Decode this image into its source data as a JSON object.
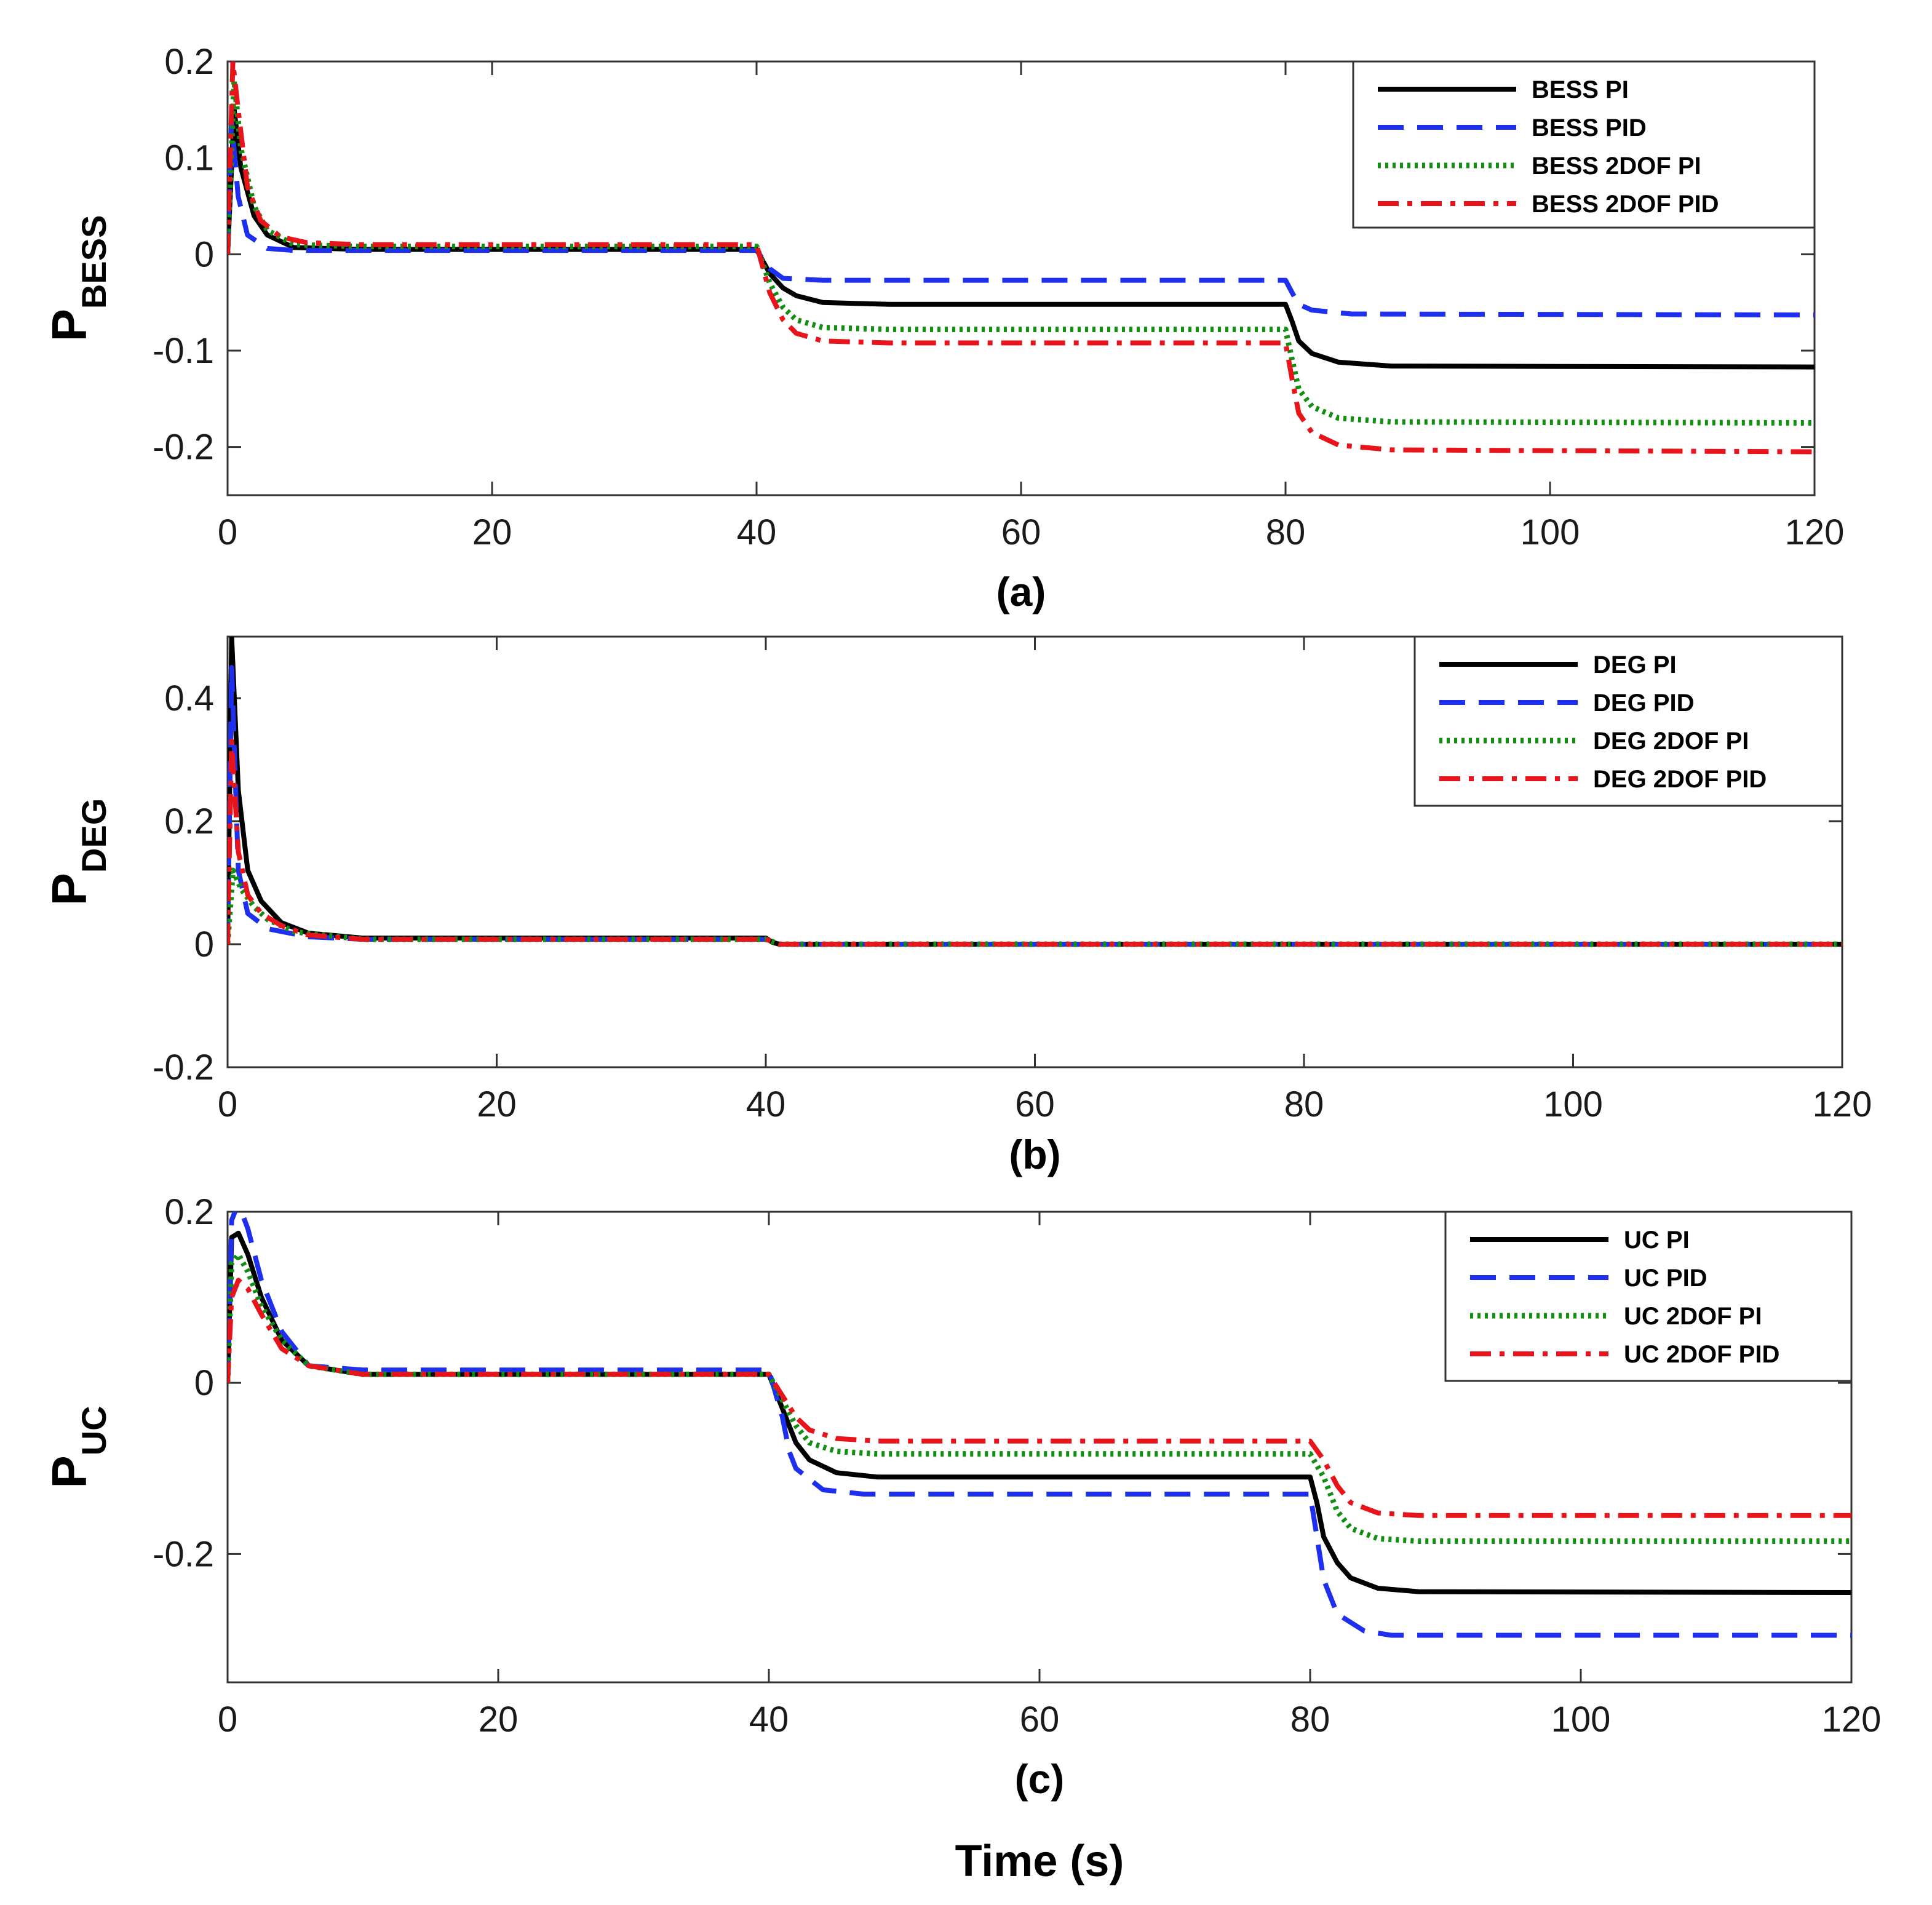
{
  "x_title": "Time (s)",
  "chart_data": [
    {
      "type": "line",
      "panel_label": "(a)",
      "ylabel_main": "P",
      "ylabel_sub": "BESS",
      "xlim": [
        0,
        120
      ],
      "ylim": [
        -0.25,
        0.2
      ],
      "xticks": [
        "0",
        "20",
        "40",
        "60",
        "80",
        "100",
        "120"
      ],
      "yticks": [
        "0.2",
        "0.1",
        "0",
        "-0.1",
        "-0.2"
      ],
      "ytick_values": [
        0.2,
        0.1,
        0,
        -0.1,
        -0.2
      ],
      "legend_position": "top-right",
      "series": [
        {
          "name": "BESS PI",
          "color": "#000000",
          "style": "solid",
          "x": [
            0,
            0.5,
            1,
            2,
            3,
            5,
            10,
            40,
            41,
            42,
            43,
            45,
            50,
            80,
            80.5,
            81,
            82,
            84,
            88,
            120
          ],
          "y": [
            0,
            0.15,
            0.09,
            0.04,
            0.02,
            0.007,
            0.005,
            0.005,
            -0.02,
            -0.035,
            -0.043,
            -0.05,
            -0.052,
            -0.052,
            -0.07,
            -0.09,
            -0.103,
            -0.112,
            -0.116,
            -0.117
          ]
        },
        {
          "name": "BESS PID",
          "color": "#1f2ff0",
          "style": "dashed",
          "x": [
            0,
            0.3,
            0.8,
            1.5,
            3,
            5,
            10,
            40,
            41,
            42,
            45,
            80,
            80.5,
            81,
            82,
            85,
            120
          ],
          "y": [
            0,
            0.14,
            0.06,
            0.02,
            0.006,
            0.004,
            0.004,
            0.004,
            -0.015,
            -0.025,
            -0.027,
            -0.027,
            -0.04,
            -0.052,
            -0.058,
            -0.062,
            -0.063
          ]
        },
        {
          "name": "BESS 2DOF PI",
          "color": "#118f11",
          "style": "dotted",
          "x": [
            0,
            0.5,
            1,
            2,
            3,
            5,
            10,
            40,
            41,
            42,
            43,
            45,
            50,
            80,
            80.5,
            81,
            82,
            84,
            88,
            120
          ],
          "y": [
            0,
            0.18,
            0.11,
            0.05,
            0.025,
            0.01,
            0.008,
            0.008,
            -0.03,
            -0.055,
            -0.068,
            -0.076,
            -0.078,
            -0.078,
            -0.11,
            -0.14,
            -0.158,
            -0.17,
            -0.174,
            -0.175
          ]
        },
        {
          "name": "BESS 2DOF PID",
          "color": "#e8141b",
          "style": "dashdot",
          "x": [
            0,
            0.4,
            0.8,
            1.5,
            2.5,
            4,
            6,
            10,
            40,
            41,
            42,
            43,
            45,
            50,
            80,
            80.5,
            81,
            82,
            84,
            88,
            120
          ],
          "y": [
            0,
            0.2,
            0.15,
            0.07,
            0.035,
            0.018,
            0.012,
            0.01,
            0.01,
            -0.04,
            -0.068,
            -0.082,
            -0.09,
            -0.092,
            -0.092,
            -0.13,
            -0.165,
            -0.185,
            -0.198,
            -0.203,
            -0.205
          ]
        }
      ]
    },
    {
      "type": "line",
      "panel_label": "(b)",
      "ylabel_main": "P",
      "ylabel_sub": "DEG",
      "xlim": [
        0,
        120
      ],
      "ylim": [
        -0.2,
        0.5
      ],
      "xticks": [
        "0",
        "20",
        "40",
        "60",
        "80",
        "100",
        "120"
      ],
      "yticks": [
        "0.4",
        "0.2",
        "0",
        "-0.2"
      ],
      "ytick_values": [
        0.4,
        0.2,
        0,
        -0.2
      ],
      "legend_position": "top-right",
      "series": [
        {
          "name": "DEG PI",
          "color": "#000000",
          "style": "solid",
          "x": [
            0,
            0.3,
            0.8,
            1.5,
            2.5,
            4,
            6,
            10,
            40,
            40.5,
            41,
            120
          ],
          "y": [
            0,
            0.5,
            0.25,
            0.12,
            0.07,
            0.035,
            0.018,
            0.01,
            0.01,
            0.003,
            0,
            0
          ]
        },
        {
          "name": "DEG PID",
          "color": "#1f2ff0",
          "style": "dashed",
          "x": [
            0,
            0.3,
            0.8,
            1.5,
            3,
            6,
            10,
            40,
            41,
            120
          ],
          "y": [
            0,
            0.45,
            0.12,
            0.05,
            0.025,
            0.012,
            0.008,
            0.008,
            0,
            0
          ]
        },
        {
          "name": "DEG 2DOF PI",
          "color": "#118f11",
          "style": "dotted",
          "x": [
            0,
            0.4,
            1,
            2,
            3,
            5,
            10,
            40,
            41,
            120
          ],
          "y": [
            0,
            0.12,
            0.09,
            0.06,
            0.04,
            0.02,
            0.008,
            0.008,
            0,
            0
          ]
        },
        {
          "name": "DEG 2DOF PID",
          "color": "#e8141b",
          "style": "dashdot",
          "x": [
            0,
            0.3,
            0.8,
            1.5,
            2.5,
            4,
            6,
            10,
            40,
            41,
            120
          ],
          "y": [
            0,
            0.33,
            0.15,
            0.08,
            0.05,
            0.03,
            0.015,
            0.008,
            0.008,
            0,
            0
          ]
        }
      ]
    },
    {
      "type": "line",
      "panel_label": "(c)",
      "ylabel_main": "P",
      "ylabel_sub": "UC",
      "xlim": [
        0,
        120
      ],
      "ylim": [
        -0.35,
        0.2
      ],
      "xticks": [
        "0",
        "20",
        "40",
        "60",
        "80",
        "100",
        "120"
      ],
      "yticks": [
        "0.2",
        "0",
        "-0.2"
      ],
      "ytick_values": [
        0.2,
        0,
        -0.2
      ],
      "legend_position": "top-right",
      "series": [
        {
          "name": "UC PI",
          "color": "#000000",
          "style": "solid",
          "x": [
            0,
            0.3,
            0.8,
            1.5,
            2.5,
            4,
            6,
            10,
            40,
            41,
            42,
            43,
            45,
            48,
            80,
            80.5,
            81,
            82,
            83,
            85,
            88,
            120
          ],
          "y": [
            0,
            0.17,
            0.175,
            0.15,
            0.1,
            0.05,
            0.02,
            0.01,
            0.01,
            -0.03,
            -0.07,
            -0.09,
            -0.105,
            -0.11,
            -0.11,
            -0.14,
            -0.18,
            -0.21,
            -0.228,
            -0.24,
            -0.244,
            -0.245
          ]
        },
        {
          "name": "UC PID",
          "color": "#1f2ff0",
          "style": "dashed",
          "x": [
            0,
            0.3,
            0.8,
            1.5,
            2.5,
            4,
            6,
            10,
            40,
            41,
            41.5,
            42,
            44,
            47,
            80,
            80.5,
            81,
            82,
            84,
            86,
            120
          ],
          "y": [
            0,
            0.19,
            0.21,
            0.18,
            0.12,
            0.06,
            0.02,
            0.015,
            0.015,
            -0.04,
            -0.08,
            -0.1,
            -0.125,
            -0.13,
            -0.13,
            -0.18,
            -0.23,
            -0.27,
            -0.29,
            -0.295,
            -0.295
          ]
        },
        {
          "name": "UC 2DOF PI",
          "color": "#118f11",
          "style": "dotted",
          "x": [
            0,
            0.3,
            0.8,
            1.5,
            2.5,
            4,
            6,
            10,
            40,
            41,
            42,
            43,
            45,
            48,
            80,
            81,
            82,
            83,
            85,
            88,
            120
          ],
          "y": [
            0,
            0.14,
            0.15,
            0.13,
            0.09,
            0.05,
            0.02,
            0.01,
            0.01,
            -0.02,
            -0.05,
            -0.07,
            -0.08,
            -0.083,
            -0.083,
            -0.11,
            -0.15,
            -0.17,
            -0.182,
            -0.185,
            -0.185
          ]
        },
        {
          "name": "UC 2DOF PID",
          "color": "#e8141b",
          "style": "dashdot",
          "x": [
            0,
            0.3,
            0.8,
            1.5,
            2.5,
            4,
            6,
            10,
            40,
            41,
            42,
            43,
            45,
            48,
            80,
            81,
            82,
            83,
            85,
            88,
            120
          ],
          "y": [
            0,
            0.1,
            0.12,
            0.11,
            0.08,
            0.04,
            0.02,
            0.01,
            0.01,
            -0.015,
            -0.04,
            -0.055,
            -0.065,
            -0.068,
            -0.068,
            -0.09,
            -0.12,
            -0.14,
            -0.152,
            -0.155,
            -0.155
          ]
        }
      ]
    }
  ]
}
